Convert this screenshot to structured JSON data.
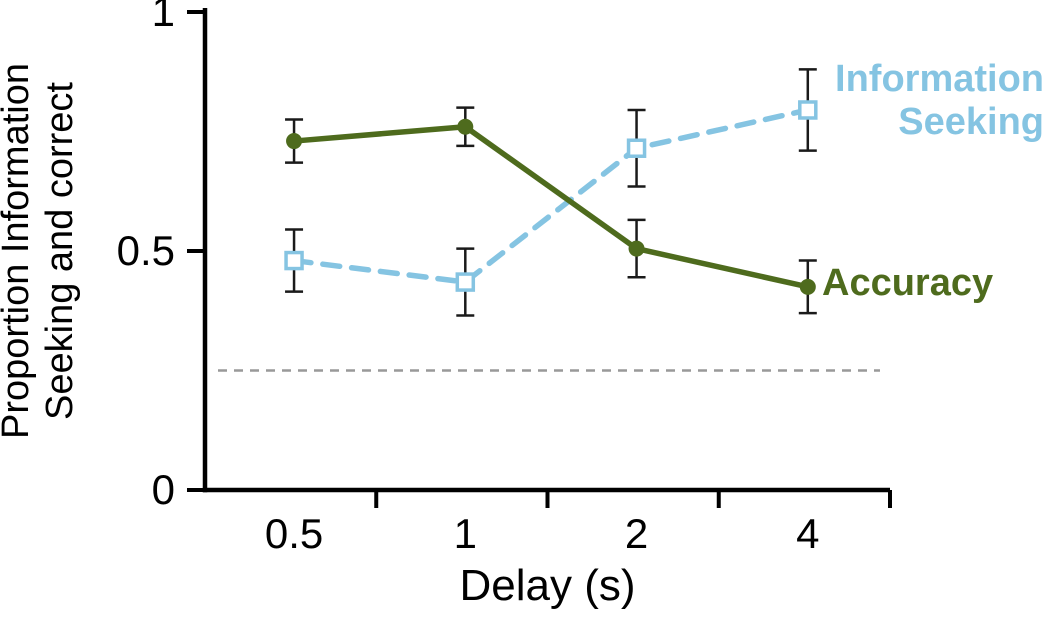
{
  "figure": {
    "background": "#ffffff"
  },
  "chart_data": {
    "type": "line",
    "title": "",
    "xlabel": "Delay (s)",
    "ylabel": "Proportion Information\nSeeking and correct",
    "x_categories": [
      "0.5",
      "1",
      "2",
      "4"
    ],
    "ylim": [
      0,
      1
    ],
    "yticks": [
      0,
      0.5,
      1
    ],
    "ytick_labels": [
      "0",
      "0.5",
      "1"
    ],
    "grid": false,
    "legend_position": "inline-right-annotations",
    "chance_line": {
      "value": 0.25,
      "style": "dashed",
      "color": "#999999"
    },
    "series": [
      {
        "name": "Information Seeking",
        "label_text": "Information\nSeeking",
        "color": "#85c4e2",
        "label_color": "#85c4e2",
        "line_style": "dashed",
        "marker": "open-square",
        "x": [
          0.5,
          1,
          2,
          4
        ],
        "values": [
          0.48,
          0.435,
          0.715,
          0.795
        ],
        "errors": [
          0.065,
          0.07,
          0.08,
          0.085
        ],
        "error_color": "#1a1a1a"
      },
      {
        "name": "Accuracy",
        "label_text": "Accuracy",
        "color": "#4e6b1d",
        "label_color": "#4e6b1d",
        "line_style": "solid",
        "marker": "filled-circle",
        "x": [
          0.5,
          1,
          2,
          4
        ],
        "values": [
          0.73,
          0.76,
          0.505,
          0.425
        ],
        "errors": [
          0.045,
          0.04,
          0.06,
          0.055
        ],
        "error_color": "#1a1a1a"
      }
    ]
  }
}
